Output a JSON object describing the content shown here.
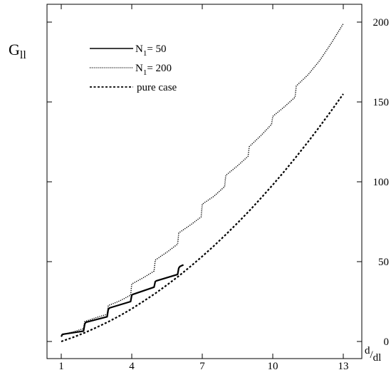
{
  "chart_data": {
    "type": "line",
    "ylabel_main": "G",
    "ylabel_sub": "ll",
    "xlabel_main": "d",
    "xlabel_sub": "dl",
    "xlabel_slash": "/",
    "xlim": [
      1,
      13
    ],
    "ylim": [
      0,
      200
    ],
    "x_ticks": [
      1,
      4,
      7,
      10,
      13
    ],
    "y_ticks": [
      0,
      50,
      100,
      150,
      200
    ],
    "grid": false,
    "legend_position": "top-left",
    "series": [
      {
        "name_main": "N",
        "name_sub": "1",
        "name_rest": "= 50",
        "style": "solid",
        "x": [
          1.0,
          1.05,
          1.95,
          2.0,
          2.05,
          2.95,
          3.0,
          3.05,
          3.95,
          4.0,
          4.05,
          4.95,
          5.0,
          5.05,
          5.95,
          6.0,
          6.05,
          6.2
        ],
        "y": [
          3.0,
          4.5,
          6.5,
          11.0,
          12.0,
          15.5,
          20.0,
          21.0,
          25.0,
          29.0,
          29.5,
          34.0,
          37.5,
          38.0,
          42.0,
          46.0,
          47.0,
          48.0
        ]
      },
      {
        "name_main": "N",
        "name_sub": "1",
        "name_rest": "= 200",
        "style": "dotted",
        "x": [
          1.0,
          1.5,
          1.95,
          2.0,
          2.5,
          2.95,
          3.0,
          3.5,
          3.95,
          4.0,
          4.5,
          4.95,
          5.0,
          5.5,
          5.95,
          6.0,
          6.5,
          6.95,
          7.0,
          7.5,
          7.95,
          8.0,
          8.5,
          8.95,
          9.0,
          9.5,
          9.95,
          10.0,
          10.5,
          10.95,
          11.0,
          11.5,
          12.0,
          12.5,
          13.0
        ],
        "y": [
          4.0,
          6.0,
          8.0,
          12.5,
          15.0,
          17.0,
          22.5,
          25.5,
          29.0,
          36.0,
          40.0,
          44.0,
          51.0,
          56.0,
          61.0,
          68.0,
          73.0,
          78.0,
          86.0,
          91.0,
          97.0,
          104.0,
          110.0,
          116.0,
          122.0,
          129.0,
          136.0,
          141.0,
          147.0,
          153.0,
          160.0,
          167.0,
          176.0,
          187.0,
          199.0
        ]
      },
      {
        "name_main": "pure case",
        "name_sub": "",
        "name_rest": "",
        "style": "dashed",
        "x": [
          1,
          1.5,
          2,
          2.5,
          3,
          3.5,
          4,
          4.5,
          5,
          5.5,
          6,
          6.5,
          7,
          7.5,
          8,
          8.5,
          9,
          9.5,
          10,
          10.5,
          11,
          11.5,
          12,
          12.5,
          13
        ],
        "y": [
          0,
          2.6,
          5.5,
          8.8,
          12.3,
          16.2,
          20.5,
          25.2,
          30.1,
          35.4,
          41.0,
          47.0,
          53.3,
          59.9,
          66.9,
          74.2,
          81.8,
          89.8,
          98.1,
          106.7,
          115.7,
          125.0,
          134.7,
          144.7,
          155.0
        ]
      }
    ]
  }
}
